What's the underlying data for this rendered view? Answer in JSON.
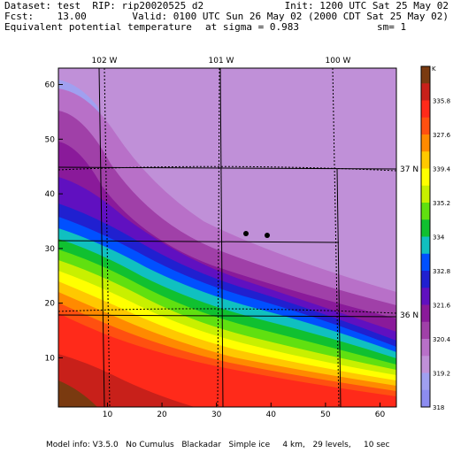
{
  "header": {
    "dataset": "Dataset: test  RIP: rip20020525 d2",
    "init": "Init: 1200 UTC Sat 25 May 02",
    "fcst": "Fcst:    13.00",
    "valid": "Valid: 0100 UTC Sun 26 May 02 (2000 CDT Sat 25 May 02)",
    "field": "Equivalent potential temperature",
    "sigma": "at sigma = 0.983",
    "sm": "sm= 1"
  },
  "map": {
    "x_ticks": [
      10,
      20,
      30,
      40,
      50,
      60
    ],
    "y_ticks": [
      10,
      20,
      30,
      40,
      50,
      60
    ],
    "lon_labels": [
      "102 W",
      "101 W",
      "100 W"
    ],
    "lat_labels": [
      "37 N",
      "36 N"
    ]
  },
  "legend": {
    "unit": "K",
    "labels": [
      "335.8",
      "327.6",
      "339.4",
      "335.2",
      "334",
      "332.8",
      "321.6",
      "320.4",
      "319.2",
      "318"
    ],
    "colors": [
      "#7a3a10",
      "#c8201a",
      "#ff2a1a",
      "#ff5010",
      "#ff8a00",
      "#ffc800",
      "#ffff00",
      "#c8f000",
      "#60e010",
      "#10c030",
      "#10c0c0",
      "#0050ff",
      "#2020d0",
      "#6010c0",
      "#8a1a9a",
      "#a040a8",
      "#b870c8",
      "#c090d8",
      "#a0a0f0",
      "#8c8cf0"
    ]
  },
  "footer": "Model info: V3.5.0   No Cumulus   Blackadar   Simple ice     4 km,   29 levels,     10 sec"
}
